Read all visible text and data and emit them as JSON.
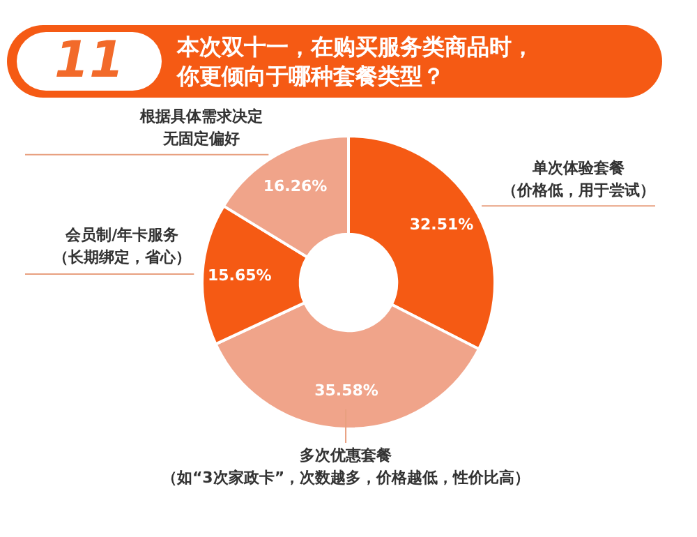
{
  "chart_data": {
    "type": "donut",
    "title": "本次双十一，在购买服务类商品时，你更倾向于哪种套餐类型？",
    "annotations": [
      "11"
    ],
    "categories": [
      "单次体验套餐（价格低，用于尝试）",
      "多次优惠套餐（如“3次家政卡”，次数越多，价格越低，性价比高）",
      "会员制/年卡服务（长期绑定，省心）",
      "根据具体需求决定无固定偏好"
    ],
    "values": [
      32.51,
      35.58,
      15.65,
      16.26
    ],
    "colors": [
      "#f55a14",
      "#f0a48a",
      "#f55a14",
      "#f0a48a"
    ],
    "value_labels": [
      "32.51%",
      "35.58%",
      "15.65%",
      "16.26%"
    ],
    "legend": false
  }
}
